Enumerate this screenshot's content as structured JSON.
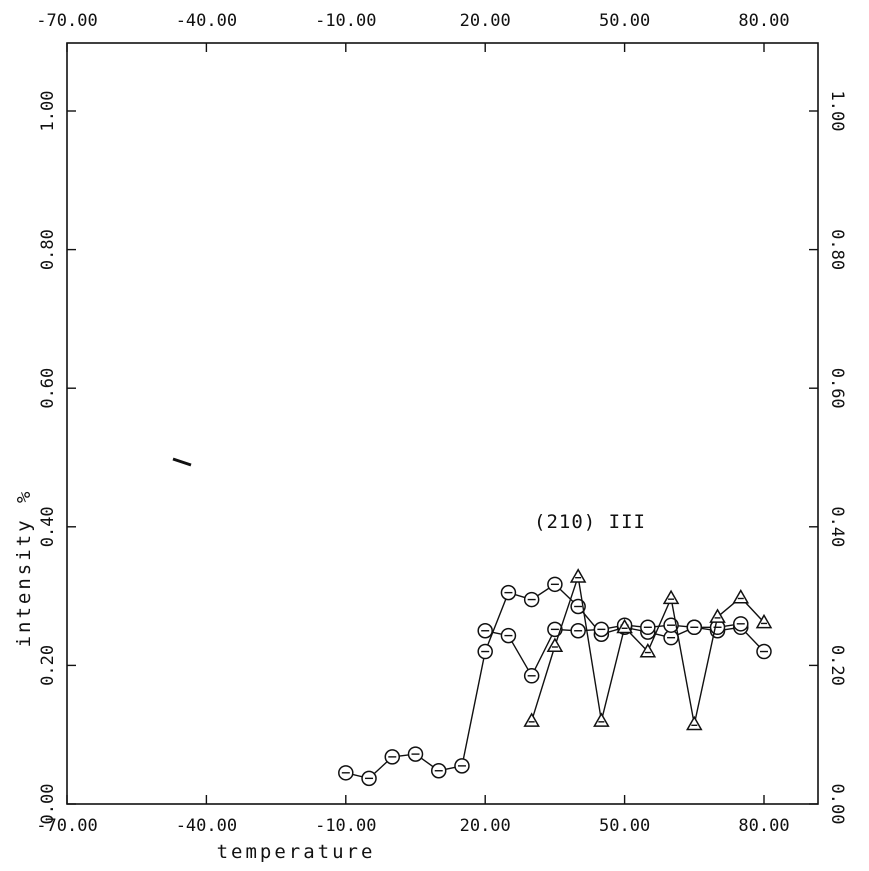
{
  "chart_data": {
    "type": "line",
    "xlabel": "temperature",
    "ylabel": "intensity %",
    "annotation": "(210) III",
    "xlim": [
      -70,
      80
    ],
    "ylim": [
      0,
      1.1
    ],
    "x_ticks": [
      -70,
      -40,
      -10,
      20,
      50,
      80
    ],
    "x_tick_labels": [
      "-70.00",
      "-40.00",
      "-10.00",
      "20.00",
      "50.00",
      "80.00"
    ],
    "y_ticks": [
      0,
      0.2,
      0.4,
      0.6,
      0.8,
      1.0
    ],
    "y_tick_labels": [
      "0.00",
      "0.20",
      "0.40",
      "0.60",
      "0.80",
      "1.00"
    ],
    "grid": false,
    "series": [
      {
        "marker": "circle",
        "x": [
          -10,
          -5,
          0,
          5,
          10,
          15,
          20,
          25,
          30,
          35,
          40,
          45,
          50,
          55,
          60,
          65,
          70,
          75,
          80
        ],
        "y": [
          0.045,
          0.037,
          0.068,
          0.072,
          0.048,
          0.055,
          0.22,
          0.305,
          0.295,
          0.317,
          0.285,
          0.245,
          0.255,
          0.248,
          0.24,
          0.255,
          0.25,
          0.255,
          0.22
        ]
      },
      {
        "marker": "circle",
        "x": [
          20,
          25,
          30,
          35,
          40,
          45,
          50,
          55,
          60,
          65,
          70,
          75
        ],
        "y": [
          0.25,
          0.243,
          0.185,
          0.252,
          0.25,
          0.252,
          0.258,
          0.255,
          0.258,
          0.255,
          0.255,
          0.26
        ]
      },
      {
        "marker": "triangle",
        "x": [
          30,
          35,
          40,
          45,
          50,
          55,
          60,
          65,
          70,
          75,
          80
        ],
        "y": [
          0.12,
          0.228,
          0.328,
          0.12,
          0.255,
          0.22,
          0.297,
          0.115,
          0.27,
          0.298,
          0.262
        ]
      }
    ]
  }
}
